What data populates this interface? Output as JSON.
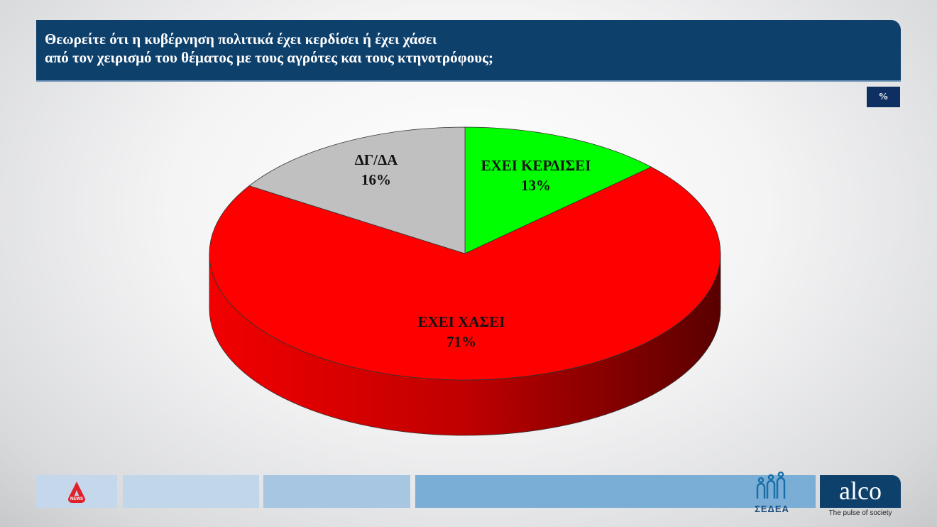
{
  "header": {
    "line1": "Θεωρείτε ότι η κυβέρνηση πολιτικά έχει κερδίσει ή έχει χάσει",
    "line2": "από τον χειρισμό του θέματος με τους αγρότες και τους κτηνοτρόφους;"
  },
  "unit": "%",
  "chart_data": {
    "type": "pie",
    "style": "3d",
    "start": "12 o'clock, clockwise",
    "categories": [
      "ΕΧΕΙ ΚΕΡΔΙΣΕΙ",
      "ΕΧΕΙ ΧΑΣΕΙ",
      "ΔΓ/ΔΑ"
    ],
    "values": [
      13,
      71,
      16
    ],
    "value_labels": [
      "13%",
      "71%",
      "16%"
    ],
    "colors": [
      "#00ff00",
      "#ff0000",
      "#c0c0c0"
    ],
    "legend": "none"
  },
  "footer": {
    "sedea": "ΣΕΔΕΑ",
    "alco": "alco",
    "tagline": "The pulse of society",
    "alpha_badge": "NEWS",
    "box_colors": [
      "#c5d7ea",
      "#c2d6ea",
      "#a6c6e2",
      "#7aaed6"
    ]
  }
}
